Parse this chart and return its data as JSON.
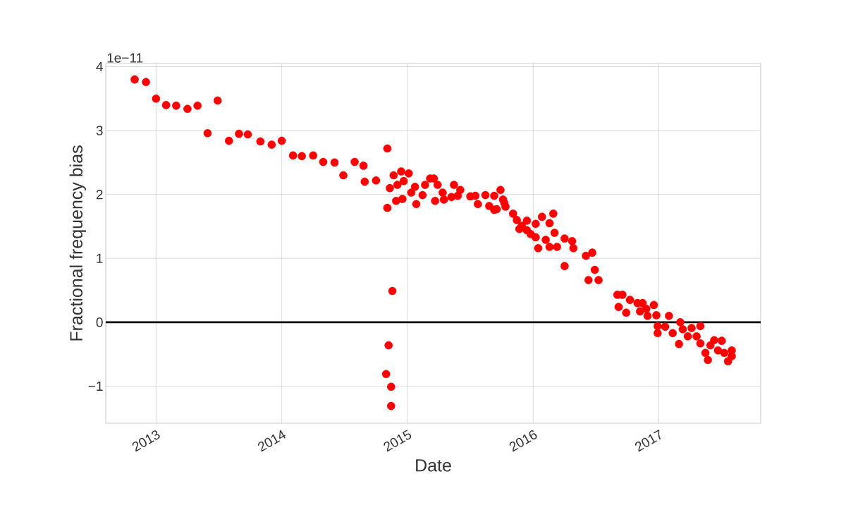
{
  "chart_data": {
    "type": "scatter",
    "xlabel": "Date",
    "ylabel": "Fractional frequency bias",
    "annotations": [
      "1e−11"
    ],
    "xlim": [
      2012.6,
      2017.81
    ],
    "ylim": [
      -1.58,
      4.05
    ],
    "xticks": [
      2013,
      2014,
      2015,
      2016,
      2017
    ],
    "yticks": [
      {
        "value": -1,
        "label": "−1"
      },
      0,
      1,
      2,
      3,
      4
    ],
    "grid": true,
    "ref_lines": [
      {
        "axis": "y",
        "value": 0,
        "color": "#000000"
      }
    ],
    "series": [
      {
        "color": "#ff0000",
        "x": [
          2012.83,
          2012.92,
          2013.0,
          2013.08,
          2013.16,
          2013.25,
          2013.33,
          2013.41,
          2013.49,
          2013.58,
          2013.66,
          2013.73,
          2013.83,
          2013.92,
          2014.0,
          2014.09,
          2014.16,
          2014.25,
          2014.33,
          2014.42,
          2014.49,
          2014.58,
          2014.65,
          2014.66,
          2014.75,
          2014.84,
          2014.84,
          2014.83,
          2014.85,
          2014.88,
          2014.87,
          2014.87,
          2014.89,
          2014.95,
          2015.01,
          2014.86,
          2014.92,
          2014.97,
          2014.91,
          2014.96,
          2015.06,
          2015.07,
          2015.03,
          2015.12,
          2015.14,
          2015.18,
          2015.21,
          2015.24,
          2015.22,
          2015.28,
          2015.29,
          2015.35,
          2015.37,
          2015.42,
          2015.4,
          2015.5,
          2015.54,
          2015.56,
          2015.62,
          2015.65,
          2015.69,
          2015.74,
          2015.71,
          2015.77,
          2015.69,
          2015.76,
          2015.78,
          2015.84,
          2015.87,
          2015.91,
          2015.95,
          2015.89,
          2015.95,
          2016.02,
          2015.98,
          2016.07,
          2016.16,
          2016.13,
          2016.02,
          2016.04,
          2016.1,
          2016.13,
          2016.17,
          2016.19,
          2016.25,
          2016.31,
          2016.32,
          2016.42,
          2016.47,
          2016.25,
          2016.49,
          2016.44,
          2016.52,
          2016.67,
          2016.71,
          2016.68,
          2016.74,
          2016.77,
          2016.83,
          2016.87,
          2016.85,
          2016.9,
          2016.96,
          2016.91,
          2016.98,
          2017.08,
          2016.99,
          2016.99,
          2017.05,
          2017.11,
          2017.17,
          2017.19,
          2017.16,
          2017.23,
          2017.26,
          2017.33,
          2017.3,
          2017.33,
          2017.37,
          2017.39,
          2017.41,
          2017.44,
          2017.5,
          2017.47,
          2017.52,
          2017.58,
          2017.58,
          2017.55
        ],
        "values": [
          3.8,
          3.76,
          3.5,
          3.4,
          3.39,
          3.34,
          3.39,
          2.96,
          3.47,
          2.84,
          2.95,
          2.94,
          2.83,
          2.78,
          2.84,
          2.61,
          2.6,
          2.61,
          2.51,
          2.5,
          2.3,
          2.51,
          2.45,
          2.2,
          2.22,
          2.72,
          1.79,
          -0.81,
          -0.36,
          0.49,
          -1.01,
          -1.31,
          2.3,
          2.36,
          2.33,
          2.1,
          2.15,
          2.21,
          1.9,
          1.93,
          2.12,
          1.85,
          2.03,
          1.99,
          2.15,
          2.25,
          2.25,
          2.15,
          1.9,
          2.03,
          1.92,
          1.96,
          2.15,
          2.07,
          1.98,
          1.97,
          1.98,
          1.85,
          1.99,
          1.82,
          1.98,
          2.07,
          1.77,
          1.87,
          1.76,
          1.92,
          1.81,
          1.7,
          1.6,
          1.51,
          1.59,
          1.46,
          1.44,
          1.54,
          1.38,
          1.65,
          1.7,
          1.55,
          1.33,
          1.16,
          1.29,
          1.18,
          1.4,
          1.18,
          1.31,
          1.27,
          1.16,
          1.04,
          1.09,
          0.88,
          0.82,
          0.66,
          0.66,
          0.43,
          0.43,
          0.24,
          0.15,
          0.35,
          0.3,
          0.3,
          0.17,
          0.21,
          0.27,
          0.1,
          0.11,
          0.1,
          -0.06,
          -0.17,
          -0.07,
          -0.17,
          0.0,
          -0.11,
          -0.34,
          -0.22,
          -0.09,
          -0.06,
          -0.22,
          -0.33,
          -0.48,
          -0.59,
          -0.36,
          -0.28,
          -0.29,
          -0.44,
          -0.48,
          -0.44,
          -0.53,
          -0.61
        ]
      }
    ]
  }
}
